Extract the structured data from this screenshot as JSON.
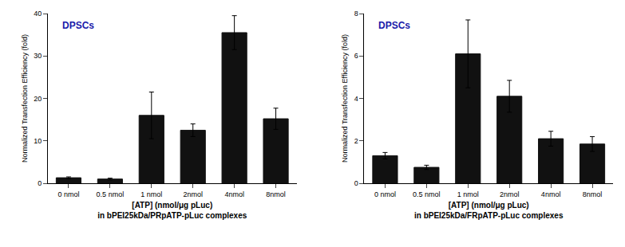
{
  "chart_data": [
    {
      "type": "bar",
      "categories": [
        "0 nmol",
        "0.5 nmol",
        "1 nmol",
        "2nmol",
        "4nmol",
        "8nmol"
      ],
      "values": [
        1.3,
        1.0,
        16.0,
        12.5,
        35.5,
        15.2
      ],
      "errors": [
        0.2,
        0.2,
        5.5,
        1.5,
        4.0,
        2.5
      ],
      "color": "#111111",
      "ylim": [
        0,
        40
      ],
      "yticks": [
        0,
        10,
        20,
        30,
        40
      ],
      "ylabel": "Normalized Transfection Efficiency (fold)",
      "xlabel": "[ATP] (nmol/μg pLuc)\nin bPEI25kDa/PRpATP-pLuc complexes",
      "annotations": [
        {
          "text": "DPSCs",
          "color": "#1a1aaa"
        }
      ],
      "grid": false
    },
    {
      "type": "bar",
      "categories": [
        "0 nmol",
        "0.5 nmol",
        "1 nmol",
        "2nmol",
        "4nmol",
        "8nmol"
      ],
      "values": [
        1.3,
        0.75,
        6.1,
        4.1,
        2.1,
        1.85
      ],
      "errors": [
        0.15,
        0.1,
        1.6,
        0.75,
        0.35,
        0.35
      ],
      "color": "#111111",
      "ylim": [
        0,
        8
      ],
      "yticks": [
        0,
        2,
        4,
        6,
        8
      ],
      "ylabel": "Normalized Transfection Efficiency (fold)",
      "xlabel": "[ATP] (nmol/μg pLuc)\nin bPEI25kDa/FRpATP-pLuc complexes",
      "annotations": [
        {
          "text": "DPSCs",
          "color": "#1a1aaa"
        }
      ],
      "grid": false
    }
  ]
}
